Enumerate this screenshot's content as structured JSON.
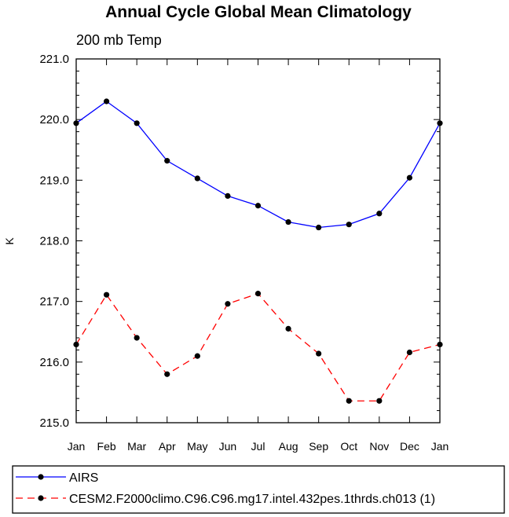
{
  "chart_data": {
    "type": "line",
    "title": "Annual Cycle Global Mean Climatology",
    "subtitle": "200 mb Temp",
    "xlabel": "",
    "ylabel": "K",
    "ylim": [
      215.0,
      221.0
    ],
    "y_ticks": [
      "215.0",
      "216.0",
      "217.0",
      "218.0",
      "219.0",
      "220.0",
      "221.0"
    ],
    "y_tick_values": [
      215,
      216,
      217,
      218,
      219,
      220,
      221
    ],
    "categories": [
      "Jan",
      "Feb",
      "Mar",
      "Apr",
      "May",
      "Jun",
      "Jul",
      "Aug",
      "Sep",
      "Oct",
      "Nov",
      "Dec",
      "Jan"
    ],
    "grid": false,
    "legend_position": "bottom",
    "series": [
      {
        "name": "AIRS",
        "color": "#0000ff",
        "dash": "solid",
        "values": [
          219.94,
          220.3,
          219.94,
          219.32,
          219.03,
          218.74,
          218.58,
          218.31,
          218.22,
          218.27,
          218.45,
          219.04,
          219.94
        ]
      },
      {
        "name": "CESM2.F2000climo.C96.C96.mg17.intel.432pes.1thrds.ch013 (1)",
        "color": "#ff0000",
        "dash": "dashed",
        "values": [
          216.29,
          217.11,
          216.4,
          215.8,
          216.1,
          216.96,
          217.13,
          216.55,
          216.14,
          215.36,
          215.36,
          216.16,
          216.29
        ]
      }
    ]
  }
}
